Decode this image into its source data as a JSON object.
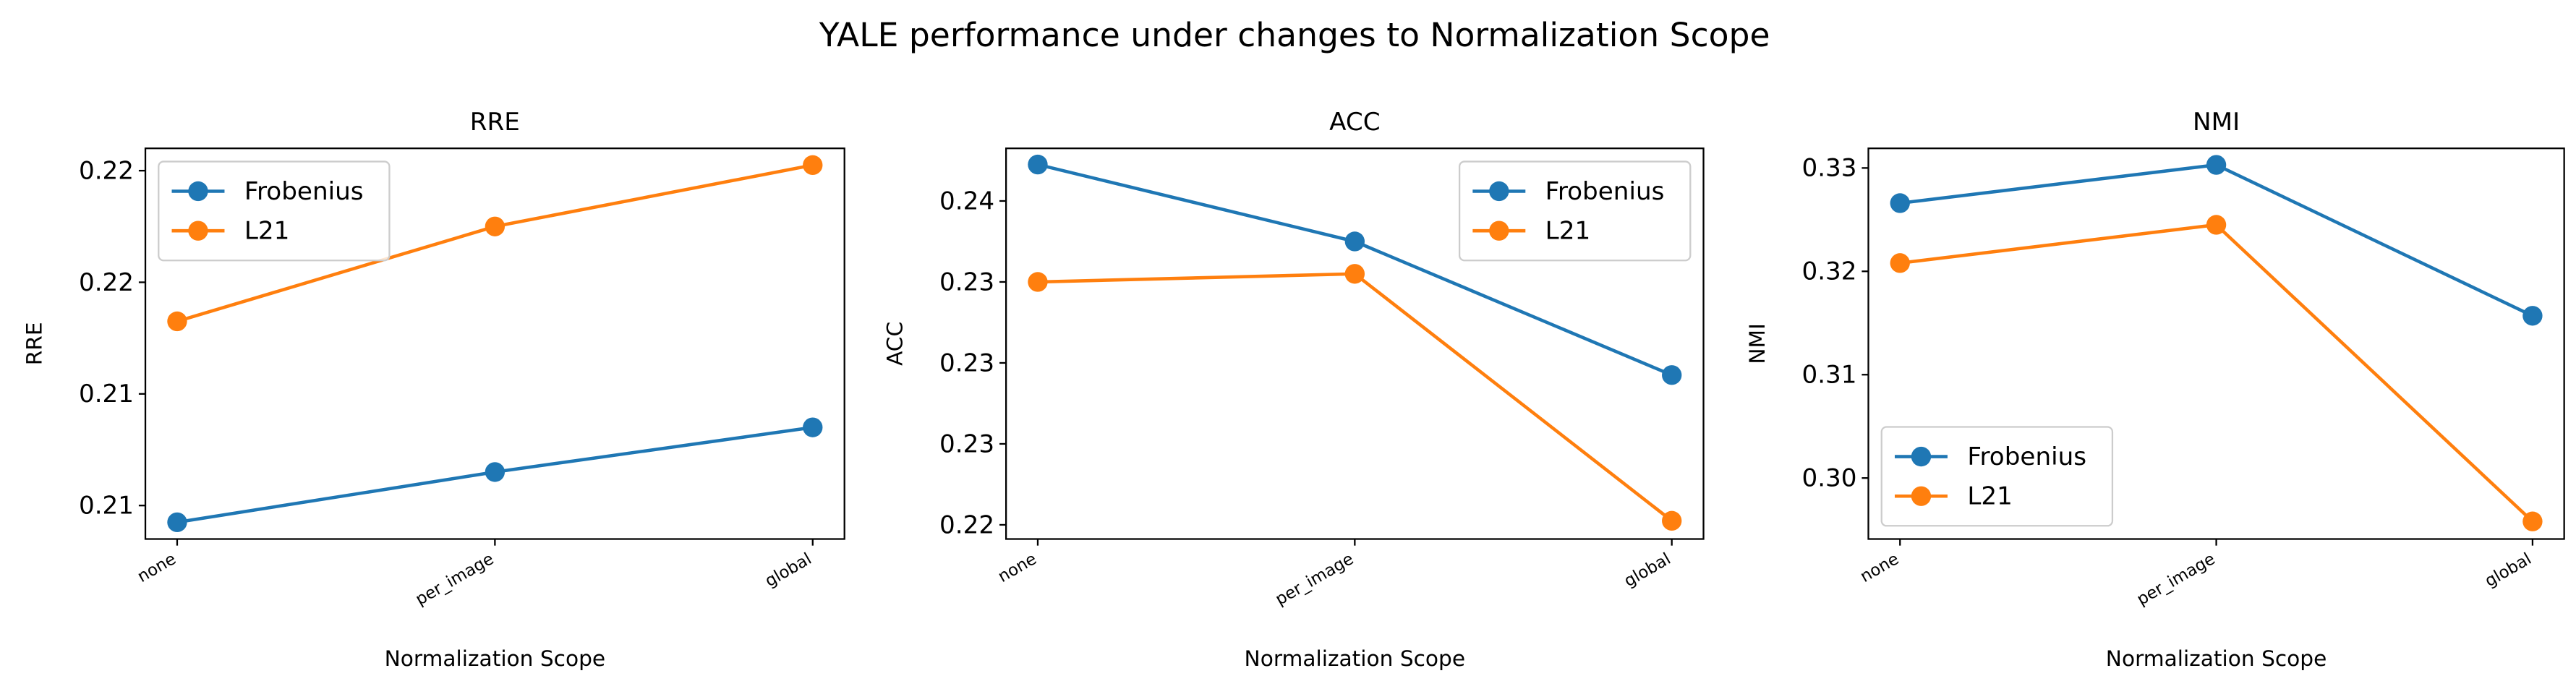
{
  "title": "YALE performance under changes to Normalization Scope",
  "chart_data": [
    {
      "type": "line",
      "title": "RRE",
      "xlabel": "Normalization Scope",
      "ylabel": "RRE",
      "categories": [
        "none",
        "per_image",
        "global"
      ],
      "series": [
        {
          "name": "Frobenius",
          "color": "#1f77b4",
          "values": [
            0.2074,
            0.2092,
            0.2108
          ]
        },
        {
          "name": "L21",
          "color": "#ff7f0e",
          "values": [
            0.2146,
            0.218,
            0.2202
          ]
        }
      ],
      "ylim": [
        0.2068,
        0.2208
      ],
      "yticks": [
        {
          "value": 0.208,
          "label": "0.21"
        },
        {
          "value": 0.212,
          "label": "0.21"
        },
        {
          "value": 0.216,
          "label": "0.22"
        },
        {
          "value": 0.22,
          "label": "0.22"
        }
      ],
      "legend_loc": "upper left"
    },
    {
      "type": "line",
      "title": "ACC",
      "xlabel": "Normalization Scope",
      "ylabel": "ACC",
      "categories": [
        "none",
        "per_image",
        "global"
      ],
      "series": [
        {
          "name": "Frobenius",
          "color": "#1f77b4",
          "values": [
            0.2398,
            0.236,
            0.2294
          ]
        },
        {
          "name": "L21",
          "color": "#ff7f0e",
          "values": [
            0.234,
            0.2344,
            0.2222
          ]
        }
      ],
      "ylim": [
        0.2213,
        0.2406
      ],
      "yticks": [
        {
          "value": 0.222,
          "label": "0.22"
        },
        {
          "value": 0.226,
          "label": "0.23"
        },
        {
          "value": 0.23,
          "label": "0.23"
        },
        {
          "value": 0.234,
          "label": "0.23"
        },
        {
          "value": 0.238,
          "label": "0.24"
        }
      ],
      "legend_loc": "upper right"
    },
    {
      "type": "line",
      "title": "NMI",
      "xlabel": "Normalization Scope",
      "ylabel": "NMI",
      "categories": [
        "none",
        "per_image",
        "global"
      ],
      "series": [
        {
          "name": "Frobenius",
          "color": "#1f77b4",
          "values": [
            0.3266,
            0.3303,
            0.3157
          ]
        },
        {
          "name": "L21",
          "color": "#ff7f0e",
          "values": [
            0.3208,
            0.3245,
            0.2958
          ]
        }
      ],
      "ylim": [
        0.2941,
        0.3319
      ],
      "yticks": [
        {
          "value": 0.3,
          "label": "0.30"
        },
        0.31,
        0.32,
        0.33
      ],
      "legend_loc": "lower left"
    }
  ]
}
